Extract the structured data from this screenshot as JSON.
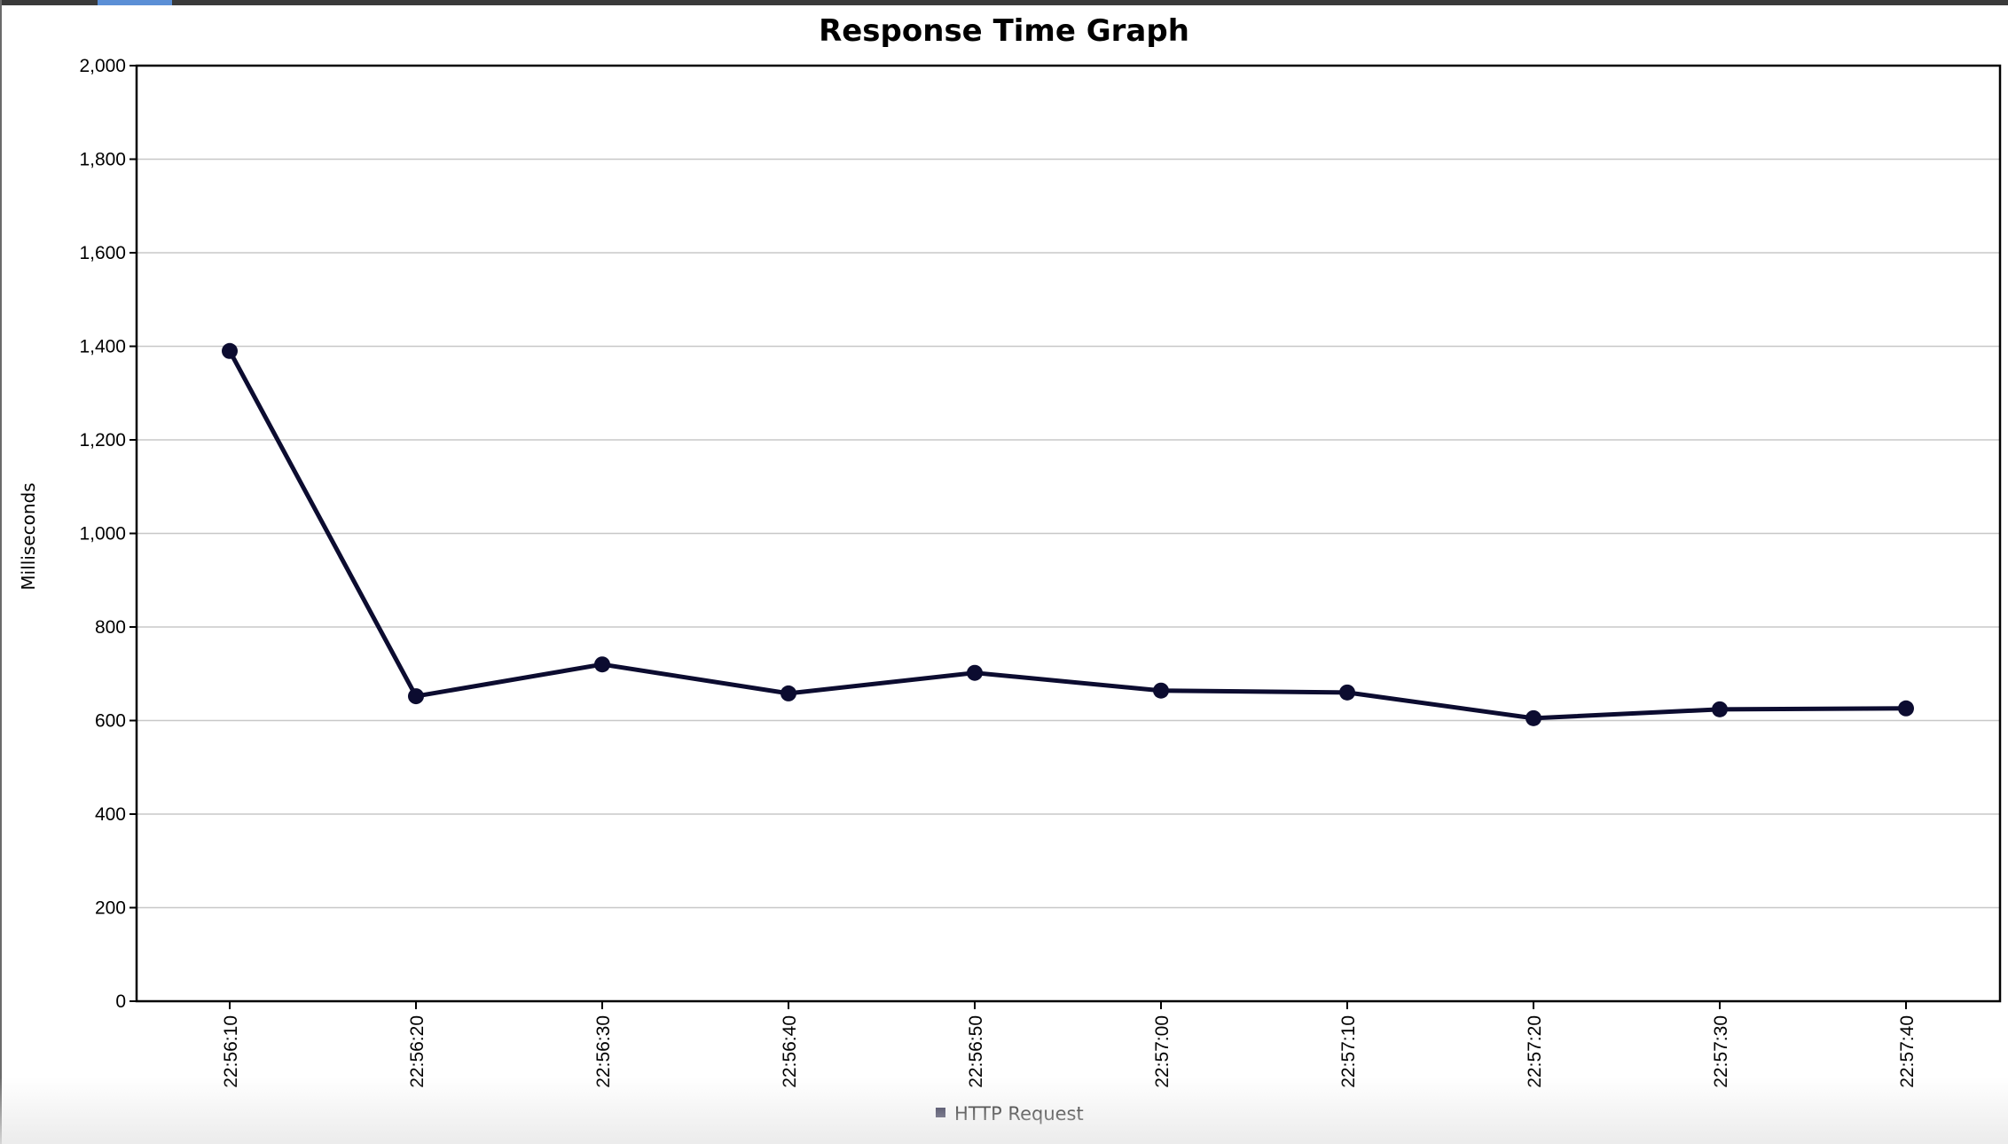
{
  "chart_data": {
    "type": "line",
    "title": "Response Time Graph",
    "xlabel": "",
    "ylabel": "Milliseconds",
    "ylim": [
      0,
      2000
    ],
    "yticks": [
      "0",
      "200",
      "400",
      "600",
      "800",
      "1,000",
      "1,200",
      "1,400",
      "1,600",
      "1,800",
      "2,000"
    ],
    "ytick_values": [
      0,
      200,
      400,
      600,
      800,
      1000,
      1200,
      1400,
      1600,
      1800,
      2000
    ],
    "categories": [
      "22:56:10",
      "22:56:20",
      "22:56:30",
      "22:56:40",
      "22:56:50",
      "22:57:00",
      "22:57:10",
      "22:57:20",
      "22:57:30",
      "22:57:40"
    ],
    "series": [
      {
        "name": "HTTP Request",
        "color": "#0c0c30",
        "values": [
          1390,
          652,
          720,
          658,
          702,
          664,
          660,
          605,
          624,
          626
        ]
      }
    ],
    "grid": true,
    "legend": "bottom-center"
  }
}
